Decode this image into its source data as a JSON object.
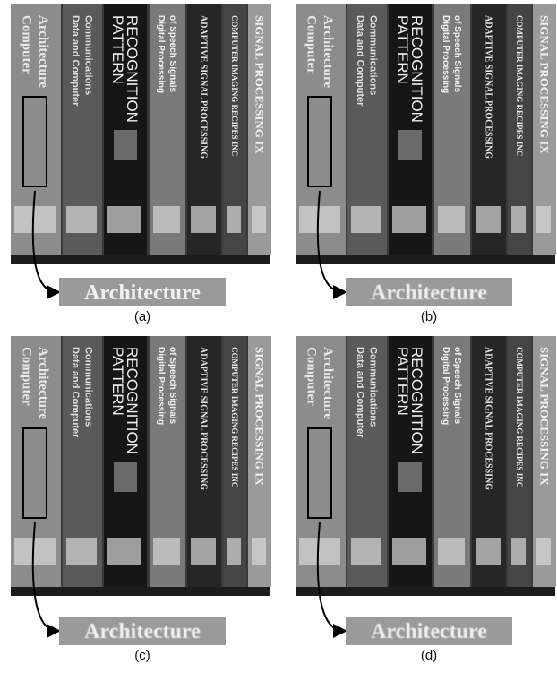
{
  "books": [
    {
      "lines": [
        "Computer",
        "Architecture"
      ]
    },
    {
      "lines": [
        "Data and Computer",
        "Communications"
      ]
    },
    {
      "lines": [
        "PATTERN",
        "RECOGNITION"
      ]
    },
    {
      "lines": [
        "Digital Processing",
        "of Speech Signals"
      ]
    },
    {
      "lines": [
        "ADAPTIVE SIGNAL PROCESSING"
      ]
    },
    {
      "lines": [
        "COMPUTER IMAGING RECIPES INC"
      ]
    },
    {
      "lines": [
        "SIGNAL PROCESSING IX"
      ]
    }
  ],
  "zoom_text": "Architecture",
  "panels": [
    {
      "label": "(a)"
    },
    {
      "label": "(b)"
    },
    {
      "label": "(c)"
    },
    {
      "label": "(d)"
    }
  ]
}
